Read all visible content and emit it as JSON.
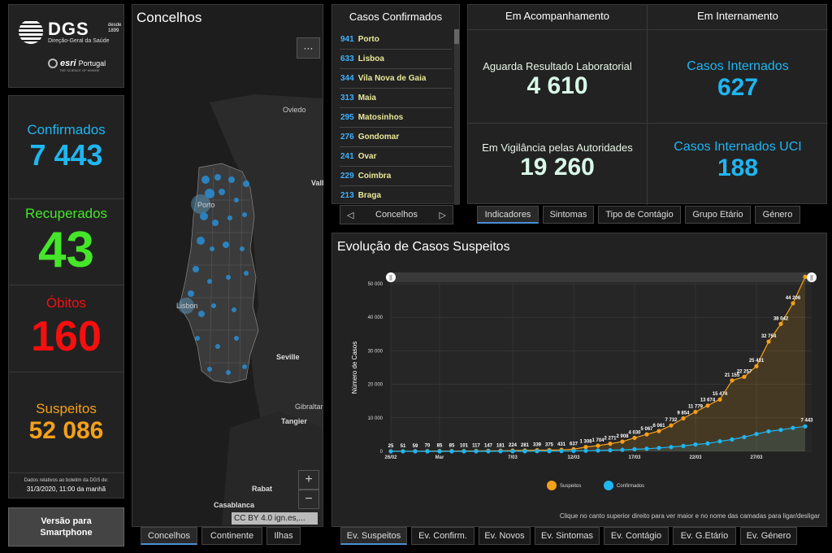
{
  "logo": {
    "name": "DGS",
    "since": "desde 1899",
    "subtitle": "Direção-Geral da Saúde",
    "partner": "esri",
    "partner_country": "Portugal",
    "partner_tagline": "THE SCIENCE OF WHERE"
  },
  "stats": {
    "confirmed_label": "Confirmados",
    "confirmed_value": "7 443",
    "recovered_label": "Recuperados",
    "recovered_value": "43",
    "deaths_label": "Óbitos",
    "deaths_value": "160",
    "suspects_label": "Suspeitos",
    "suspects_value": "52 086",
    "note_line1": "Dados relativos ao boletim da DGS de:",
    "note_line2": "31/3/2020, 11:00 da manhã",
    "colors": {
      "confirmed": "#1fb6f2",
      "recovered": "#45e62a",
      "deaths": "#f50f0f",
      "suspects": "#f5a01a"
    }
  },
  "smartphone_button": "Versão para Smartphone",
  "map": {
    "title": "Concelhos",
    "menu_icon": "ellipsis-icon",
    "places": [
      "Oviedo",
      "Vall",
      "Porto",
      "Lisbon",
      "Seville",
      "Gibraltar",
      "Tangier",
      "Rabat",
      "Casablanca"
    ],
    "zoom_in": "+",
    "zoom_out": "−",
    "attribution": "CC BY 4.0 ign.es,...",
    "tabs": [
      "Concelhos",
      "Continente",
      "Ilhas"
    ]
  },
  "casos": {
    "title": "Casos Confirmados",
    "rows": [
      {
        "n": "941",
        "c": "Porto"
      },
      {
        "n": "633",
        "c": "Lisboa"
      },
      {
        "n": "344",
        "c": "Vila Nova de Gaia"
      },
      {
        "n": "313",
        "c": "Maia"
      },
      {
        "n": "295",
        "c": "Matosinhos"
      },
      {
        "n": "276",
        "c": "Gondomar"
      },
      {
        "n": "241",
        "c": "Ovar"
      },
      {
        "n": "229",
        "c": "Coimbra"
      },
      {
        "n": "213",
        "c": "Braga"
      }
    ],
    "nav_label": "Concelhos"
  },
  "indicators": {
    "head_left": "Em Acompanhamento",
    "head_right": "Em Internamento",
    "awaiting_label": "Aguarda Resultado Laboratorial",
    "awaiting_value": "4 610",
    "surveillance_label": "Em Vigilância pelas Autoridades",
    "surveillance_value": "19 260",
    "hosp_label": "Casos Internados",
    "hosp_value": "627",
    "icu_label": "Casos Internados UCI",
    "icu_value": "188",
    "tabs": [
      "Indicadores",
      "Sintomas",
      "Tipo de Contágio",
      "Grupo Etário",
      "Género"
    ]
  },
  "chart": {
    "title": "Evolução de Casos Suspeitos",
    "note": "Clique no canto superior direito para ver maior e no nome das camadas para ligar/desligar",
    "tabs": [
      "Ev. Suspeitos",
      "Ev. Confirm.",
      "Ev. Novos",
      "Ev. Sintomas",
      "Ev. Contágio",
      "Ev. G.Etário",
      "Ev. Género"
    ]
  },
  "chart_data": {
    "type": "line",
    "title": "Evolução de Casos Suspeitos",
    "ylabel": "Número de Casos",
    "xlabel": "",
    "ylim": [
      0,
      50000
    ],
    "yticks": [
      "0",
      "10 000",
      "20 000",
      "30 000",
      "40 000",
      "50 000"
    ],
    "xticks": [
      "26/02",
      "Mar",
      "7/03",
      "12/03",
      "17/03",
      "22/03",
      "27/03"
    ],
    "xtick_days": [
      0,
      4,
      10,
      15,
      20,
      25,
      30
    ],
    "legend": {
      "position": "bottom"
    },
    "annotations": [
      "25",
      "51",
      "59",
      "70",
      "85",
      "85",
      "101",
      "117",
      "147",
      "181",
      "224",
      "281",
      "339",
      "375",
      "431",
      "637",
      "1 308",
      "1 704",
      "2 271",
      "2 908",
      "4 030",
      "5 067",
      "6 061",
      "7 732",
      "9 854",
      "11 779",
      "13 674",
      "15 474",
      "21 155",
      "22 257",
      "25 431",
      "32 754",
      "38 042",
      "44 206"
    ],
    "annotations_confirmed": [
      "7 443"
    ],
    "series": [
      {
        "name": "Suspeitos",
        "color": "#f5a01a",
        "values": [
          25,
          51,
          59,
          70,
          85,
          85,
          101,
          117,
          147,
          181,
          224,
          281,
          339,
          375,
          431,
          637,
          1308,
          1704,
          2271,
          2908,
          4030,
          5067,
          6061,
          7732,
          9854,
          11779,
          13674,
          15474,
          21155,
          22257,
          25431,
          32754,
          38042,
          44206,
          52086
        ]
      },
      {
        "name": "Confirmados",
        "color": "#1fb6f2",
        "values": [
          0,
          0,
          0,
          0,
          0,
          2,
          4,
          6,
          9,
          13,
          21,
          30,
          41,
          59,
          78,
          112,
          169,
          245,
          331,
          448,
          642,
          785,
          1020,
          1280,
          1600,
          2060,
          2362,
          2995,
          3544,
          4268,
          5170,
          5962,
          6408,
          7000,
          7443
        ]
      }
    ]
  }
}
